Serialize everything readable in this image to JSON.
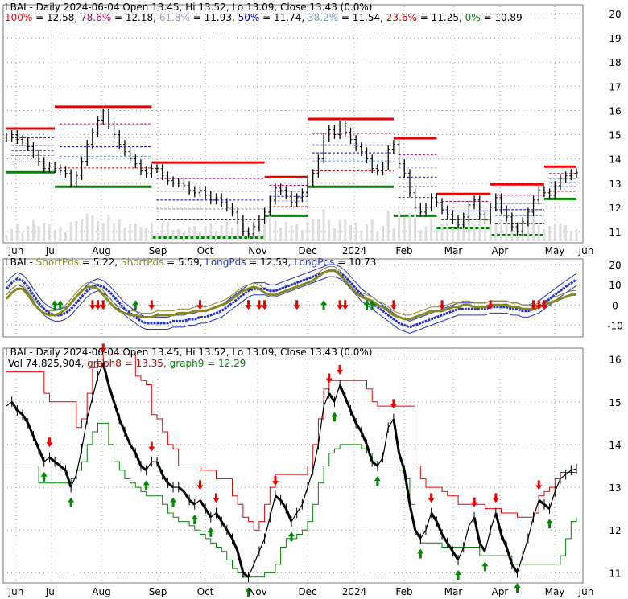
{
  "colors": {
    "up": "#000000",
    "red": "#ee0000",
    "green": "#008800",
    "olive": "#888822",
    "blue": "#2233cc",
    "fib_100": "#ff0000",
    "fib_786": "#aa0066",
    "fib_618": "#9999bb",
    "fib_50": "#0000cc",
    "fib_382": "#6699cc",
    "fib_236": "#cc0000",
    "fib_0": "#008800",
    "grid": "#999999"
  },
  "chart_data": [
    {
      "type": "line",
      "name": "price",
      "title": "LBAI - Daily 2024-06-04 Open 13.45, Hi 13.52, Lo 13.09, Close 13.43 (0.0%)",
      "fib_levels": [
        {
          "label": "100%",
          "value": "12.58"
        },
        {
          "label": "78.6%",
          "value": "12.18"
        },
        {
          "label": "61.8%",
          "value": "11.93"
        },
        {
          "label": "50%",
          "value": "11.74"
        },
        {
          "label": "38.2%",
          "value": "11.54"
        },
        {
          "label": "23.6%",
          "value": "11.25"
        },
        {
          "label": "0%",
          "value": "10.89"
        }
      ],
      "y_ticks": [
        "20",
        "19",
        "18",
        "17",
        "16",
        "15",
        "14",
        "13",
        "12",
        "11"
      ],
      "ylim": [
        10.6,
        20.3
      ],
      "x_ticks": [
        "Jun",
        "Jul",
        "Aug",
        "Sep",
        "Oct",
        "Nov",
        "Dec",
        "2024",
        "Feb",
        "Mar",
        "Apr",
        "May",
        "Jun"
      ],
      "grid": true,
      "close": [
        14.9,
        15.0,
        14.8,
        14.7,
        14.5,
        14.2,
        13.9,
        13.6,
        13.7,
        13.6,
        13.5,
        13.4,
        13.0,
        13.3,
        13.9,
        14.6,
        15.1,
        15.6,
        15.9,
        15.4,
        15.0,
        14.6,
        14.3,
        14.0,
        13.8,
        13.5,
        13.4,
        13.6,
        13.6,
        13.3,
        13.1,
        13.0,
        13.0,
        12.9,
        12.7,
        12.6,
        12.7,
        12.5,
        12.3,
        12.4,
        12.2,
        12.0,
        11.8,
        11.5,
        11.0,
        10.9,
        11.2,
        11.5,
        11.8,
        12.3,
        12.8,
        12.7,
        12.5,
        12.2,
        12.4,
        12.6,
        13.0,
        13.4,
        14.0,
        14.9,
        15.2,
        15.0,
        15.4,
        15.1,
        14.8,
        14.5,
        14.3,
        14.0,
        13.6,
        13.5,
        13.7,
        14.4,
        14.6,
        13.8,
        13.4,
        12.6,
        12.0,
        11.8,
        12.0,
        12.4,
        12.2,
        11.9,
        11.7,
        11.5,
        11.3,
        11.6,
        12.1,
        12.3,
        11.7,
        11.5,
        12.0,
        12.4,
        11.9,
        11.6,
        11.2,
        11.0,
        11.4,
        11.8,
        12.3,
        12.7,
        12.6,
        12.5,
        12.9,
        13.2,
        13.3,
        13.4,
        13.43
      ],
      "graph8": [
        15.7,
        15.7,
        15.7,
        15.7,
        15.7,
        15.7,
        15.7,
        15.2,
        15.0,
        15.0,
        15.0,
        15.0,
        15.0,
        14.4,
        14.6,
        15.2,
        15.8,
        16.0,
        16.1,
        16.1,
        16.1,
        16.1,
        16.1,
        16.1,
        15.6,
        15.5,
        15.4,
        14.7,
        14.6,
        14.3,
        14.0,
        13.9,
        13.5,
        13.5,
        13.5,
        13.5,
        13.4,
        13.4,
        13.4,
        13.2,
        13.2,
        13.2,
        12.8,
        12.6,
        12.3,
        12.2,
        12.0,
        12.2,
        12.6,
        13.0,
        13.3,
        13.3,
        13.3,
        13.3,
        13.3,
        13.3,
        13.5,
        14.0,
        14.6,
        15.3,
        15.5,
        15.5,
        15.5,
        15.5,
        15.5,
        15.5,
        15.5,
        15.3,
        15.0,
        14.9,
        14.9,
        14.9,
        14.9,
        14.9,
        14.9,
        14.9,
        13.5,
        13.2,
        13.0,
        13.0,
        13.0,
        12.9,
        12.8,
        12.8,
        12.6,
        12.6,
        12.6,
        12.6,
        12.6,
        12.5,
        12.5,
        12.5,
        12.4,
        12.4,
        12.4,
        12.3,
        12.3,
        12.3,
        12.4,
        12.8,
        12.9,
        13.0,
        13.2,
        13.35,
        13.35,
        13.35,
        13.35
      ],
      "graph9": [
        13.5,
        13.5,
        13.5,
        13.5,
        13.5,
        13.5,
        13.1,
        13.1,
        13.1,
        13.1,
        13.1,
        13.1,
        13.2,
        13.4,
        13.6,
        14.0,
        14.3,
        14.5,
        14.5,
        14.0,
        13.6,
        13.4,
        13.2,
        13.1,
        13.0,
        12.9,
        12.8,
        12.8,
        12.8,
        12.6,
        12.4,
        12.3,
        12.2,
        12.2,
        12.1,
        12.0,
        11.9,
        11.8,
        11.7,
        11.6,
        11.5,
        11.3,
        11.1,
        11.0,
        10.9,
        10.9,
        10.9,
        10.9,
        11.0,
        11.0,
        11.2,
        11.6,
        11.8,
        11.8,
        11.9,
        12.0,
        12.2,
        12.6,
        13.1,
        13.5,
        13.8,
        13.9,
        14.0,
        14.0,
        14.0,
        14.0,
        13.9,
        13.8,
        13.6,
        13.5,
        13.5,
        13.5,
        13.5,
        13.4,
        13.2,
        12.6,
        11.9,
        11.7,
        11.7,
        11.7,
        11.7,
        11.6,
        11.6,
        11.6,
        11.6,
        11.6,
        11.6,
        11.6,
        11.4,
        11.4,
        11.4,
        11.4,
        11.4,
        11.4,
        11.2,
        11.2,
        11.2,
        11.2,
        11.2,
        11.2,
        11.2,
        11.2,
        11.2,
        11.4,
        11.8,
        12.2,
        12.29
      ]
    },
    {
      "type": "line",
      "name": "oscillator",
      "title": "LBAI - ShortPds = 5.22, ShortPds = 5.59, LongPds = 12.59, LongPds = 10.73",
      "labels": [
        {
          "prefix": "LBAI - ",
          "name": "ShortPds",
          "value": " = 5.22,",
          "color": "#888822"
        },
        {
          "prefix": " ",
          "name": "ShortPds",
          "value": " = 5.59,",
          "color": "#888822"
        },
        {
          "prefix": " ",
          "name": "LongPds",
          "value": " = 12.59,",
          "color": "#2233cc"
        },
        {
          "prefix": " ",
          "name": "LongPds",
          "value": " = 10.73",
          "color": "#2233cc"
        }
      ],
      "y_ticks": [
        "20",
        "10",
        "0",
        "-10"
      ],
      "ylim": [
        -15,
        22
      ],
      "short": [
        3,
        6,
        8,
        8,
        5,
        1,
        -2,
        -4,
        -5,
        -5,
        -4,
        -2,
        1,
        4,
        7,
        9,
        9,
        8,
        5,
        2,
        -1,
        -3,
        -4,
        -5,
        -5,
        -6,
        -6,
        -6,
        -5,
        -5,
        -5,
        -5,
        -4,
        -4,
        -4,
        -3,
        -3,
        -3,
        -2,
        -1,
        0,
        1,
        3,
        5,
        7,
        8,
        9,
        8,
        6,
        5,
        5,
        6,
        7,
        8,
        9,
        10,
        11,
        12,
        14,
        16,
        17,
        17,
        15,
        12,
        9,
        6,
        4,
        3,
        2,
        0,
        -1,
        -3,
        -5,
        -6,
        -7,
        -7,
        -6,
        -5,
        -4,
        -3,
        -3,
        -3,
        -2,
        -1,
        -1,
        0,
        0,
        -1,
        -1,
        -1,
        0,
        0,
        0,
        0,
        -1,
        -1,
        -2,
        -2,
        -2,
        -1,
        0,
        1,
        2,
        3,
        4,
        5,
        5.2
      ],
      "long": [
        8,
        11,
        13,
        12,
        9,
        5,
        1,
        -2,
        -4,
        -5,
        -5,
        -4,
        -2,
        1,
        4,
        7,
        9,
        10,
        9,
        7,
        4,
        1,
        -2,
        -4,
        -6,
        -8,
        -9,
        -9,
        -9,
        -9,
        -9,
        -8,
        -8,
        -8,
        -7,
        -7,
        -6,
        -6,
        -5,
        -4,
        -3,
        -1,
        1,
        3,
        5,
        7,
        8,
        8,
        8,
        7,
        7,
        8,
        9,
        10,
        11,
        12,
        13,
        14,
        15,
        16,
        17,
        17,
        16,
        14,
        11,
        8,
        5,
        3,
        1,
        -1,
        -3,
        -5,
        -7,
        -9,
        -10,
        -11,
        -10,
        -9,
        -8,
        -7,
        -6,
        -5,
        -4,
        -3,
        -2,
        -2,
        -2,
        -2,
        -2,
        -2,
        -1,
        -1,
        -1,
        -1,
        -2,
        -2,
        -3,
        -3,
        -2,
        -1,
        1,
        3,
        5,
        7,
        9,
        10.73,
        12.59
      ]
    },
    {
      "type": "line",
      "name": "detail",
      "title": "LBAI - Daily 2024-06-04 Open 13.45, Hi 13.52, Lo 13.09, Close 13.43 (0.0%)",
      "vol_label": "Vol 74,825,904",
      "graph8_label": "graph8 = 13.35,",
      "graph9_label": "graph9 = 12.29",
      "y_ticks": [
        "16",
        "15",
        "14",
        "13",
        "12",
        "11"
      ],
      "ylim": [
        10.8,
        16.2
      ],
      "x_ticks": [
        "Jun",
        "Jul",
        "Aug",
        "Sep",
        "Oct",
        "Nov",
        "Dec",
        "2024",
        "Feb",
        "Mar",
        "Apr",
        "May",
        "Jun"
      ]
    }
  ]
}
